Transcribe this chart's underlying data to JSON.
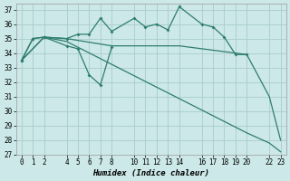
{
  "bg_color": "#cce8e8",
  "grid_color": "#aacccc",
  "line_color": "#2e7d6e",
  "xlabel": "Humidex (Indice chaleur)",
  "xlim": [
    -0.5,
    23.5
  ],
  "ylim": [
    27,
    37.4
  ],
  "yticks": [
    27,
    28,
    29,
    30,
    31,
    32,
    33,
    34,
    35,
    36,
    37
  ],
  "xticks": [
    0,
    1,
    2,
    4,
    5,
    6,
    7,
    8,
    10,
    11,
    12,
    13,
    14,
    16,
    17,
    18,
    19,
    20,
    22,
    23
  ],
  "line1_x": [
    0,
    1,
    2,
    4,
    5,
    6,
    7,
    8,
    10,
    11,
    12,
    13,
    14,
    16,
    17,
    18,
    19,
    20
  ],
  "line1_y": [
    33.5,
    35.0,
    35.1,
    35.0,
    35.3,
    35.3,
    36.4,
    35.5,
    36.4,
    35.8,
    36.0,
    35.6,
    37.2,
    36.0,
    35.8,
    35.1,
    33.9,
    33.9
  ],
  "line2_x": [
    0,
    1,
    2,
    4,
    5,
    6,
    7,
    8
  ],
  "line2_y": [
    33.5,
    35.0,
    35.1,
    34.5,
    34.3,
    32.5,
    31.8,
    34.4
  ],
  "line3_x": [
    0,
    2,
    4,
    8,
    14,
    20,
    22,
    23
  ],
  "line3_y": [
    33.5,
    35.1,
    35.0,
    34.5,
    34.5,
    33.9,
    31.0,
    28.0
  ],
  "line4_x": [
    0,
    2,
    4,
    20,
    22,
    23
  ],
  "line4_y": [
    33.5,
    35.1,
    34.8,
    28.5,
    27.8,
    27.2
  ]
}
